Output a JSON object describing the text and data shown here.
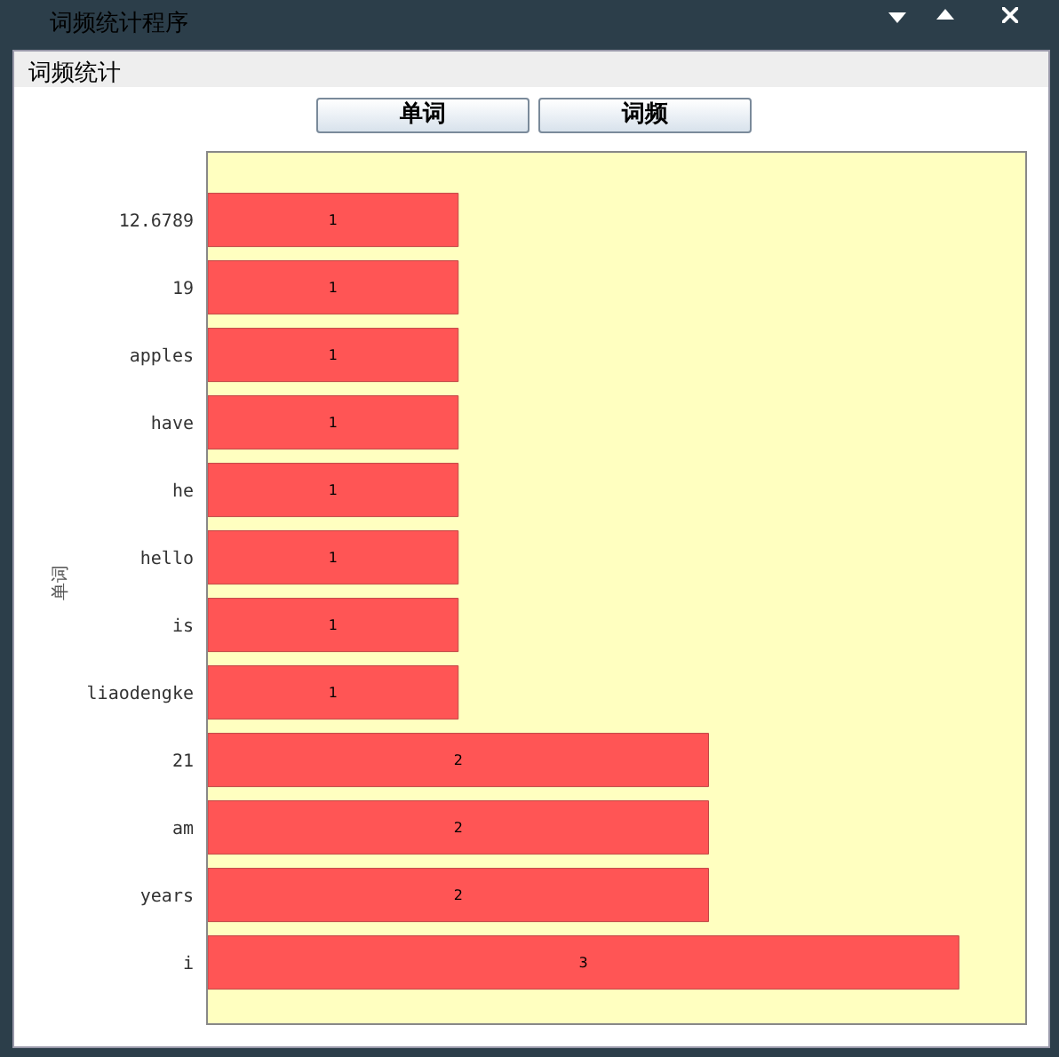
{
  "chart_data": {
    "type": "bar",
    "orientation": "horizontal",
    "title": "词频统计程序",
    "subtitle": "词频统计",
    "annotations": [
      "单词",
      "词频"
    ],
    "ylabel": "单词",
    "categories": [
      "12.6789",
      "19",
      "apples",
      "have",
      "he",
      "hello",
      "is",
      "liaodengke",
      "21",
      "am",
      "years",
      "i"
    ],
    "values": [
      1,
      1,
      1,
      1,
      1,
      1,
      1,
      1,
      2,
      2,
      2,
      3
    ],
    "color": "#ff5555",
    "data_labels": true
  }
}
